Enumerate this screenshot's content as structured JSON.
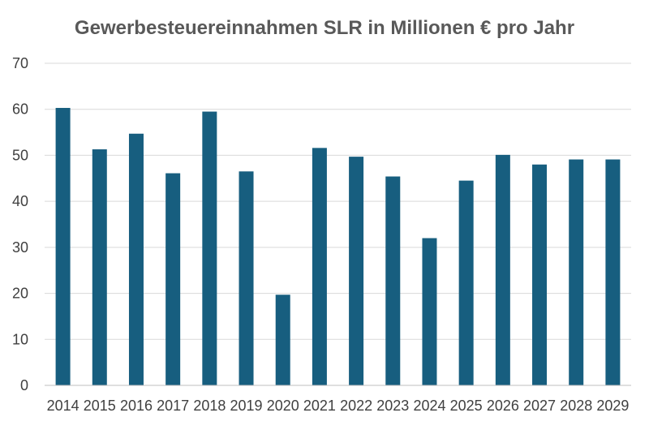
{
  "chart_data": {
    "type": "bar",
    "title": "Gewerbesteuereinnahmen SLR in Millionen € pro Jahr",
    "xlabel": "",
    "ylabel": "",
    "ylim": [
      0,
      70
    ],
    "yticks": [
      0,
      10,
      20,
      30,
      40,
      50,
      60,
      70
    ],
    "grid": true,
    "legend": "none",
    "categories": [
      "2014",
      "2015",
      "2016",
      "2017",
      "2018",
      "2019",
      "2020",
      "2021",
      "2022",
      "2023",
      "2024",
      "2025",
      "2026",
      "2027",
      "2028",
      "2029"
    ],
    "series": [
      {
        "name": "Gewerbesteuereinnahmen",
        "color": "#175e7f",
        "values": [
          60.3,
          51.3,
          54.7,
          46.1,
          59.5,
          46.5,
          19.7,
          51.6,
          49.7,
          45.4,
          32.0,
          44.5,
          50.1,
          48.0,
          49.1,
          49.1
        ]
      }
    ]
  }
}
